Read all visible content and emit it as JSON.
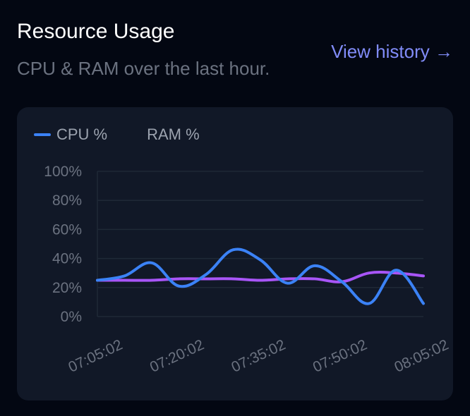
{
  "header": {
    "title": "Resource Usage",
    "subtitle": "CPU & RAM over the last hour.",
    "history_link": "View history →"
  },
  "colors": {
    "background": "#030712",
    "card": "#111827",
    "accent_link": "#818cf8",
    "cpu": "#3b82f6",
    "ram": "#a855f7",
    "grid": "#1f2937"
  },
  "chart_data": {
    "type": "line",
    "x": [
      "07:05:02",
      "07:10:02",
      "07:15:02",
      "07:20:02",
      "07:25:02",
      "07:30:02",
      "07:35:02",
      "07:40:02",
      "07:45:02",
      "07:50:02",
      "07:55:02",
      "08:00:02",
      "08:05:02"
    ],
    "x_tick_labels": [
      "07:05:02",
      "07:20:02",
      "07:35:02",
      "07:50:02",
      "08:05:02"
    ],
    "y_tick_labels": [
      "0%",
      "20%",
      "40%",
      "60%",
      "80%",
      "100%"
    ],
    "ylim": [
      0,
      100
    ],
    "series": [
      {
        "name": "CPU %",
        "color": "#3b82f6",
        "values": [
          25,
          28,
          37,
          21,
          29,
          46,
          39,
          23,
          35,
          24,
          9,
          32,
          9
        ]
      },
      {
        "name": "RAM %",
        "color": "#a855f7",
        "values": [
          25,
          25,
          25,
          26,
          26,
          26,
          25,
          26,
          26,
          24,
          30,
          30,
          28
        ]
      }
    ],
    "legend": "top-left",
    "grid": true
  }
}
